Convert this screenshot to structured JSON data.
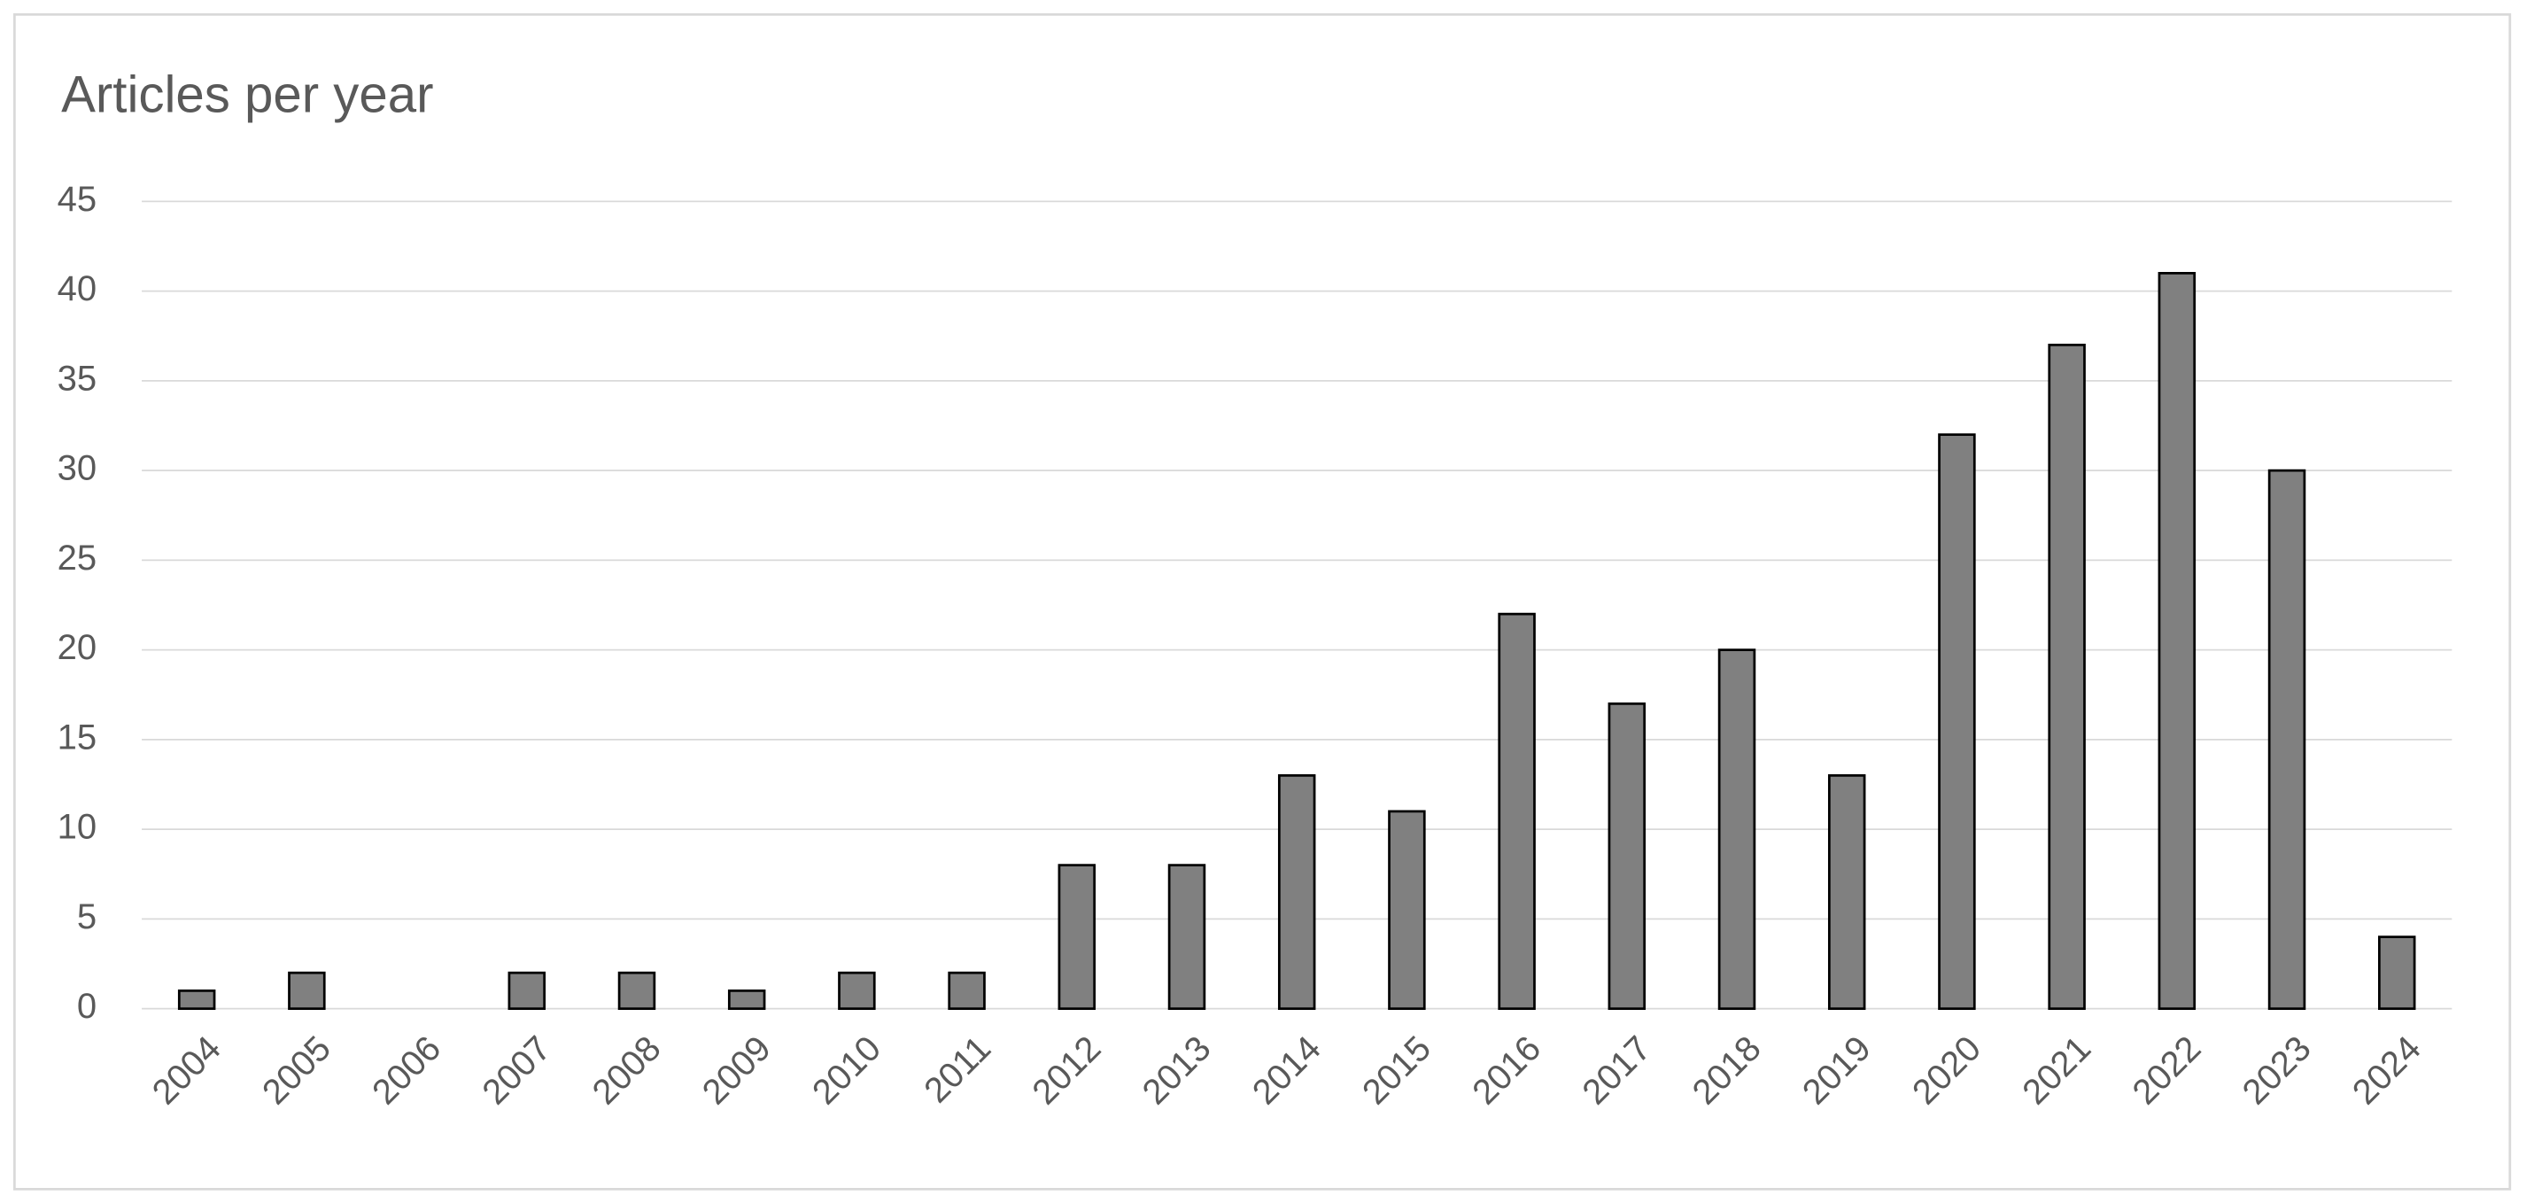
{
  "chart_data": {
    "type": "bar",
    "title": "Articles per year",
    "categories": [
      "2004",
      "2005",
      "2006",
      "2007",
      "2008",
      "2009",
      "2010",
      "2011",
      "2012",
      "2013",
      "2014",
      "2015",
      "2016",
      "2017",
      "2018",
      "2019",
      "2020",
      "2021",
      "2022",
      "2023",
      "2024"
    ],
    "values": [
      1,
      2,
      0,
      2,
      2,
      1,
      2,
      2,
      8,
      8,
      13,
      11,
      22,
      17,
      20,
      13,
      32,
      37,
      41,
      30,
      4
    ],
    "color": "#808080",
    "ylim": [
      0,
      45
    ],
    "yticks": [
      0,
      5,
      10,
      15,
      20,
      25,
      30,
      35,
      40,
      45
    ],
    "grid": true
  }
}
